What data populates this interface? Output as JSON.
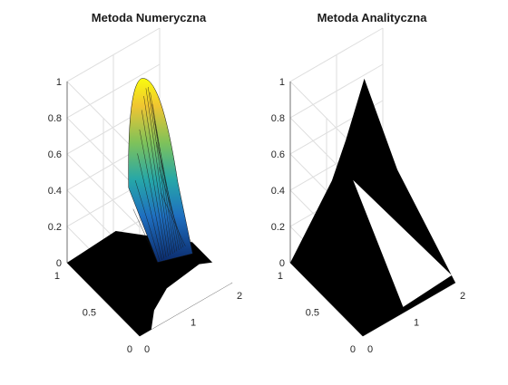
{
  "chart_data": [
    {
      "type": "surface",
      "title": "Metoda Numeryczna",
      "x_ticks": [
        "0",
        "1",
        "2"
      ],
      "y_ticks": [
        "0",
        "0.5",
        "1"
      ],
      "z_ticks": [
        "0",
        "0.2",
        "0.4",
        "0.6",
        "0.8",
        "1"
      ],
      "xlim": [
        0,
        2
      ],
      "ylim": [
        0,
        1
      ],
      "zlim": [
        0,
        1
      ],
      "grid": true,
      "colormap": "parula",
      "surface_color": "#000000",
      "peak": {
        "x": 1.6,
        "y": 1.0,
        "z": 0.78
      }
    },
    {
      "type": "surface",
      "title": "Metoda Analityczna",
      "x_ticks": [
        "0",
        "1",
        "2"
      ],
      "y_ticks": [
        "0",
        "0.5",
        "1"
      ],
      "z_ticks": [
        "0",
        "0.2",
        "0.4",
        "0.6",
        "0.8",
        "1"
      ],
      "xlim": [
        0,
        2
      ],
      "ylim": [
        0,
        1
      ],
      "zlim": [
        0,
        1
      ],
      "grid": true,
      "colormap": "black",
      "surface_color": "#000000",
      "peak": {
        "x": 1.6,
        "y": 1.0,
        "z": 0.78
      }
    }
  ]
}
